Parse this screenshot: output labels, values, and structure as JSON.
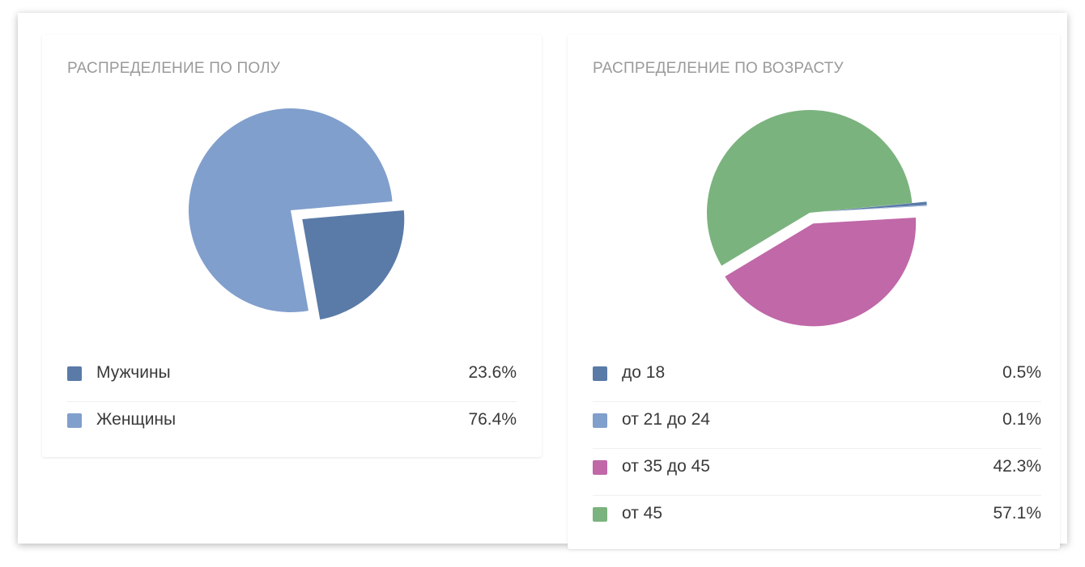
{
  "chart_data": [
    {
      "type": "pie",
      "title": "РАСПРЕДЕЛЕНИЕ ПО ПОЛУ",
      "slices": [
        {
          "label": "Мужчины",
          "value": 23.6,
          "display": "23.6%",
          "color": "#5a7ba8"
        },
        {
          "label": "Женщины",
          "value": 76.4,
          "display": "76.4%",
          "color": "#819fcc"
        }
      ]
    },
    {
      "type": "pie",
      "title": "РАСПРЕДЕЛЕНИЕ ПО ВОЗРАСТУ",
      "slices": [
        {
          "label": "до 18",
          "value": 0.5,
          "display": "0.5%",
          "color": "#5a7ba8"
        },
        {
          "label": "от 21 до 24",
          "value": 0.1,
          "display": "0.1%",
          "color": "#819fcc"
        },
        {
          "label": "от 35 до 45",
          "value": 42.3,
          "display": "42.3%",
          "color": "#c068a8"
        },
        {
          "label": "от 45",
          "value": 57.1,
          "display": "57.1%",
          "color": "#7bb37e"
        }
      ]
    }
  ]
}
